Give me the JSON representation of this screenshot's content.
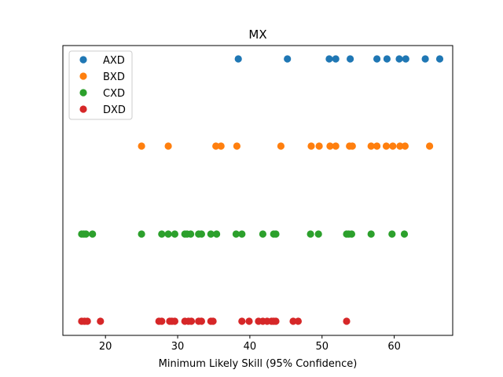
{
  "chart_data": {
    "type": "scatter",
    "title": "MX",
    "xlabel": "Minimum Likely Skill (95% Confidence)",
    "ylabel": "",
    "xlim": [
      14.1,
      68.1
    ],
    "xticks": [
      20,
      30,
      40,
      50,
      60
    ],
    "grid": false,
    "legend_position": "top-left",
    "series": [
      {
        "name": "AXD",
        "color": "#1f77b4",
        "level": 3,
        "x": [
          38.4,
          45.2,
          51.0,
          51.9,
          53.9,
          57.6,
          59.0,
          60.7,
          61.6,
          64.3,
          66.3
        ]
      },
      {
        "name": "BXD",
        "color": "#ff7f0e",
        "level": 2,
        "x": [
          25.0,
          28.7,
          35.3,
          36.0,
          38.2,
          44.3,
          48.5,
          49.6,
          51.1,
          51.9,
          53.8,
          54.2,
          56.8,
          57.6,
          58.9,
          59.8,
          60.8,
          61.5,
          64.9
        ]
      },
      {
        "name": "CXD",
        "color": "#2ca02c",
        "level": 1,
        "x": [
          16.7,
          17.0,
          17.3,
          18.2,
          25.0,
          27.8,
          28.7,
          29.6,
          31.0,
          31.3,
          31.8,
          32.9,
          33.3,
          34.6,
          35.4,
          38.1,
          38.9,
          41.8,
          43.3,
          43.6,
          48.4,
          49.5,
          53.4,
          53.7,
          54.1,
          56.8,
          59.7,
          61.4
        ]
      },
      {
        "name": "DXD",
        "color": "#d62728",
        "level": 0,
        "x": [
          16.7,
          17.1,
          17.5,
          19.3,
          27.4,
          27.8,
          28.9,
          29.2,
          29.6,
          31.0,
          31.5,
          31.9,
          32.9,
          33.3,
          34.6,
          34.9,
          38.9,
          39.9,
          41.2,
          41.8,
          42.4,
          43.0,
          43.3,
          43.6,
          46.0,
          46.7,
          53.4
        ]
      }
    ]
  }
}
